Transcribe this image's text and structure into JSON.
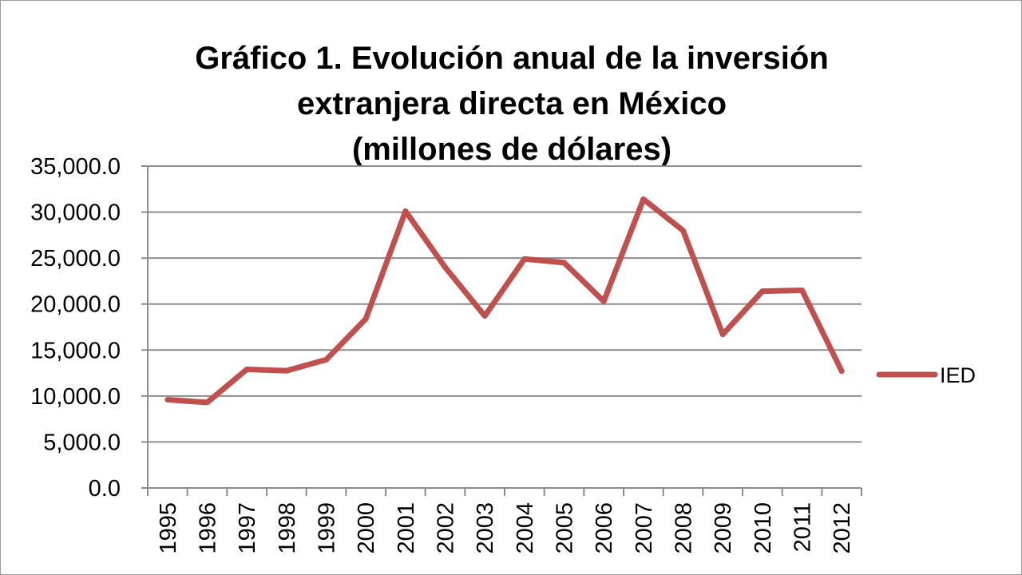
{
  "chart_data": {
    "type": "line",
    "title_lines": [
      "Gráfico 1. Evolución anual de la inversión",
      "extranjera directa en México",
      "(millones de dólares)"
    ],
    "xlabel": "",
    "ylabel": "",
    "categories": [
      "1995",
      "1996",
      "1997",
      "1998",
      "1999",
      "2000",
      "2001",
      "2002",
      "2003",
      "2004",
      "2005",
      "2006",
      "2007",
      "2008",
      "2009",
      "2010",
      "2011",
      "2012"
    ],
    "series": [
      {
        "name": "IED",
        "color": "#c0504d",
        "values": [
          9600,
          9300,
          12900,
          12750,
          13950,
          18400,
          30100,
          24000,
          18700,
          24900,
          24500,
          20300,
          31400,
          28000,
          16700,
          21400,
          21500,
          12700
        ]
      }
    ],
    "ylim": [
      0,
      35000
    ],
    "yticks": [
      0,
      5000,
      10000,
      15000,
      20000,
      25000,
      30000,
      35000
    ],
    "ytick_labels": [
      "0.0",
      "5,000.0",
      "10,000.0",
      "15,000.0",
      "20,000.0",
      "25,000.0",
      "30,000.0",
      "35,000.0"
    ],
    "grid": true,
    "legend_position": "right"
  }
}
